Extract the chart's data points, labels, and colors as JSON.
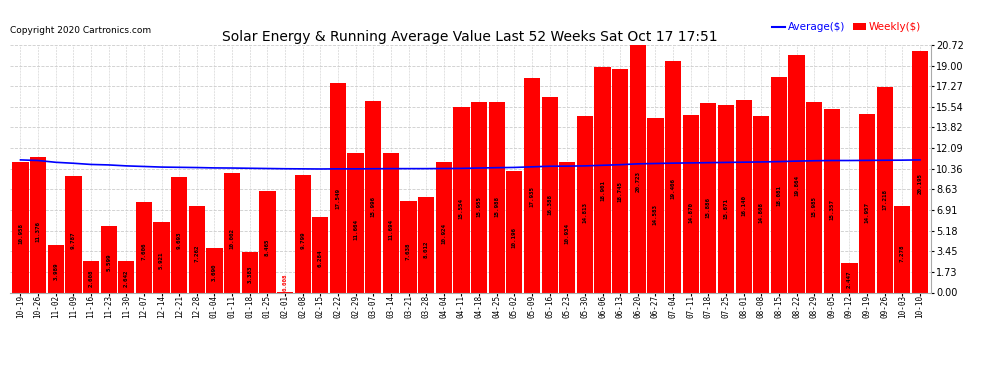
{
  "title": "Solar Energy & Running Average Value Last 52 Weeks Sat Oct 17 17:51",
  "copyright": "Copyright 2020 Cartronics.com",
  "legend_avg": "Average($)",
  "legend_weekly": "Weekly($)",
  "bar_color": "#ff0000",
  "avg_line_color": "#0000ff",
  "background_color": "#ffffff",
  "grid_color": "#cccccc",
  "yticks": [
    0.0,
    1.73,
    3.45,
    5.18,
    6.91,
    8.63,
    10.36,
    12.09,
    13.82,
    15.54,
    17.27,
    19.0,
    20.72
  ],
  "categories": [
    "10-19",
    "10-26",
    "11-02",
    "11-09",
    "11-16",
    "11-23",
    "11-30",
    "12-07",
    "12-14",
    "12-21",
    "12-28",
    "01-04",
    "01-11",
    "01-18",
    "01-25",
    "02-01",
    "02-08",
    "02-15",
    "02-22",
    "02-29",
    "03-07",
    "03-14",
    "03-21",
    "03-28",
    "04-04",
    "04-11",
    "04-18",
    "04-25",
    "05-02",
    "05-09",
    "05-16",
    "05-23",
    "05-30",
    "06-06",
    "06-13",
    "06-20",
    "06-27",
    "07-04",
    "07-11",
    "07-18",
    "07-25",
    "08-01",
    "08-08",
    "08-15",
    "08-22",
    "08-29",
    "09-05",
    "09-12",
    "09-19",
    "09-26",
    "10-03",
    "10-10"
  ],
  "weekly_values": [
    10.958,
    11.376,
    3.989,
    9.787,
    2.608,
    5.599,
    2.642,
    7.606,
    5.921,
    9.693,
    7.262,
    3.69,
    10.002,
    3.383,
    8.465,
    0.008,
    9.799,
    6.284,
    17.549,
    11.664,
    15.996,
    11.694,
    7.638,
    8.012,
    10.924,
    15.554,
    15.955,
    15.988,
    10.196,
    17.935,
    16.388,
    10.934,
    14.813,
    18.901,
    18.745,
    20.723,
    14.583,
    19.406,
    14.87,
    15.886,
    15.671,
    16.14,
    14.808,
    18.081,
    19.864,
    15.985,
    15.357,
    2.447,
    14.957,
    17.218,
    7.278,
    20.195
  ],
  "avg_values": [
    11.1,
    11.05,
    10.9,
    10.82,
    10.72,
    10.68,
    10.6,
    10.55,
    10.5,
    10.48,
    10.46,
    10.43,
    10.42,
    10.4,
    10.38,
    10.36,
    10.35,
    10.34,
    10.35,
    10.35,
    10.36,
    10.37,
    10.37,
    10.37,
    10.38,
    10.39,
    10.42,
    10.45,
    10.47,
    10.52,
    10.57,
    10.58,
    10.6,
    10.65,
    10.7,
    10.77,
    10.8,
    10.83,
    10.85,
    10.87,
    10.89,
    10.91,
    10.93,
    10.96,
    11.0,
    11.03,
    11.05,
    11.05,
    11.06,
    11.07,
    11.08,
    11.1
  ]
}
